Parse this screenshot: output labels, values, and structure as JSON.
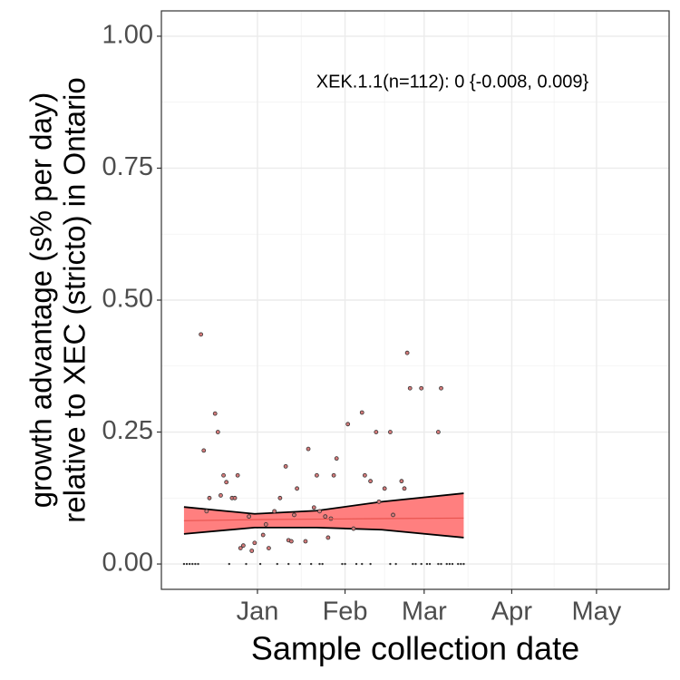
{
  "chart_data": {
    "type": "scatter",
    "annotation": "XEK.1.1(n=112): 0 {-0.008, 0.009}",
    "x_label": "Sample collection date",
    "y_label": [
      "growth advantage (s% per day)",
      "relative to XEC (stricto) in Ontario"
    ],
    "xlim": [
      -33,
      146.7
    ],
    "ylim": [
      -0.048,
      1.048
    ],
    "xticks": [
      {
        "value": 1,
        "label": "Jan"
      },
      {
        "value": 32,
        "label": "Feb"
      },
      {
        "value": 60,
        "label": "Mar"
      },
      {
        "value": 91,
        "label": "Apr"
      },
      {
        "value": 121,
        "label": "May"
      }
    ],
    "yticks": [
      {
        "value": 0,
        "label": "0.00"
      },
      {
        "value": 0.25,
        "label": "0.25"
      },
      {
        "value": 0.5,
        "label": "0.50"
      },
      {
        "value": 0.75,
        "label": "0.75"
      },
      {
        "value": 1,
        "label": "1.00"
      }
    ],
    "grid": true,
    "series": [
      {
        "color": "#d47a7a",
        "x": [
          -25,
          -24,
          -23,
          -22,
          -21,
          -20,
          -9,
          -3,
          2,
          8,
          12,
          16,
          20,
          23,
          24,
          31,
          32,
          36,
          38,
          41,
          48,
          50,
          56,
          57,
          59,
          61,
          62,
          65,
          66,
          68,
          69,
          70,
          72,
          73,
          74,
          -19,
          -18,
          -14,
          -13,
          -16,
          -17,
          -12,
          -11,
          -10,
          -8,
          -7,
          -6,
          -5,
          -4,
          -2,
          -1,
          0,
          3,
          4,
          5,
          7,
          9,
          11,
          12,
          13,
          14,
          15,
          18,
          19,
          21,
          22,
          23,
          25,
          26,
          27,
          28,
          29,
          33,
          35,
          38,
          39,
          41,
          43,
          44,
          46,
          48,
          49,
          52,
          53,
          54,
          55,
          59,
          65,
          66
        ],
        "values": [
          0,
          0,
          0,
          0,
          0,
          0,
          0,
          0,
          0,
          0,
          0,
          0,
          0,
          0,
          0,
          0,
          0,
          0,
          0,
          0,
          0,
          0,
          0,
          0,
          0,
          0,
          0,
          0,
          0,
          0,
          0,
          0,
          0,
          0,
          0,
          0.435,
          0.215,
          0.285,
          0.25,
          0.125,
          0.1,
          0.13,
          0.168,
          0.155,
          0.125,
          0.125,
          0.168,
          0.03,
          0.035,
          0.09,
          0.025,
          0.04,
          0.055,
          0.075,
          0.03,
          0.1,
          0.125,
          0.185,
          0.045,
          0.043,
          0.093,
          0.143,
          0.043,
          0.218,
          0.107,
          0.168,
          0.1,
          0.09,
          0.05,
          0.086,
          0.168,
          0.2,
          0.265,
          0.067,
          0.287,
          0.168,
          0.157,
          0.25,
          0.118,
          0.143,
          0.25,
          0.093,
          0.157,
          0.143,
          0.4,
          0.333,
          0.333,
          0.25,
          0.333
        ]
      }
    ],
    "fit": {
      "color": "#ff7f7f",
      "x": [
        -25,
        0,
        22,
        45,
        74
      ],
      "values": [
        0.082,
        0.084,
        0.085,
        0.086,
        0.087
      ],
      "lower": [
        0.057,
        0.069,
        0.069,
        0.065,
        0.05
      ],
      "upper": [
        0.108,
        0.095,
        0.101,
        0.118,
        0.134
      ]
    }
  }
}
